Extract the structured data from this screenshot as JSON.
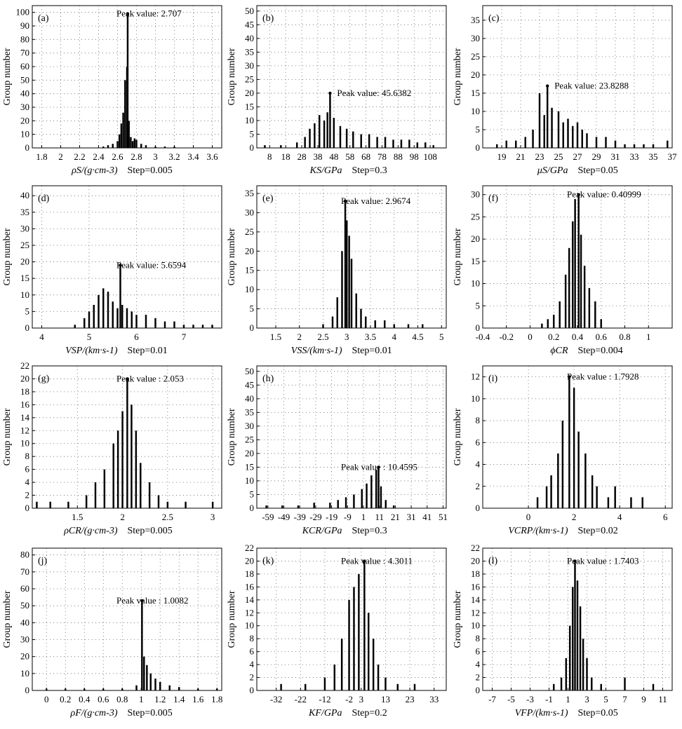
{
  "figure": {
    "ylabel": "Group number"
  },
  "chart_data": [
    {
      "type": "bar",
      "panel_label": "(a)",
      "xlabel": "ρS/(g·cm-3)",
      "step_text": "Step=0.005",
      "peak_text": "Peak value: 2.707",
      "peak": {
        "x": 2.707,
        "y": 99
      },
      "xlim": [
        1.7,
        3.7
      ],
      "ylim": [
        0,
        105
      ],
      "xticks": [
        1.8,
        2.0,
        2.2,
        2.4,
        2.6,
        2.8,
        3.0,
        3.2,
        3.4,
        3.6
      ],
      "xtick_labels": [
        "1.8",
        "2",
        "2.2",
        "2.4",
        "2.6",
        "2.8",
        "3",
        "3.2",
        "3.4",
        "3.6"
      ],
      "yticks": [
        0,
        10,
        20,
        30,
        40,
        50,
        60,
        70,
        80,
        90,
        100
      ],
      "x": [
        2.45,
        2.5,
        2.55,
        2.6,
        2.62,
        2.64,
        2.66,
        2.68,
        2.7,
        2.707,
        2.72,
        2.74,
        2.76,
        2.78,
        2.8,
        2.85,
        2.9,
        3.0,
        3.1,
        3.2
      ],
      "values": [
        1,
        2,
        3,
        5,
        10,
        18,
        26,
        50,
        60,
        99,
        20,
        8,
        5,
        7,
        6,
        3,
        2,
        1,
        1,
        1
      ]
    },
    {
      "type": "bar",
      "panel_label": "(b)",
      "xlabel": "KS/GPa",
      "step_text": "Step=0.3",
      "peak_text": "Peak value: 45.6382",
      "peak": {
        "x": 45.6382,
        "y": 20
      },
      "xlim": [
        0,
        118
      ],
      "ylim": [
        0,
        52
      ],
      "xticks": [
        8,
        18,
        28,
        38,
        48,
        58,
        68,
        78,
        88,
        98,
        108
      ],
      "xtick_labels": [
        "8",
        "18",
        "28",
        "38",
        "48",
        "58",
        "68",
        "78",
        "88",
        "98",
        "108"
      ],
      "yticks": [
        0,
        5,
        10,
        15,
        20,
        25,
        30,
        35,
        40,
        45,
        50
      ],
      "x": [
        5,
        15,
        25,
        30,
        33,
        36,
        39,
        42,
        44,
        45.6382,
        48,
        52,
        56,
        60,
        65,
        70,
        75,
        80,
        85,
        90,
        95,
        100,
        105,
        110
      ],
      "values": [
        1,
        1,
        2,
        4,
        7,
        9,
        12,
        10,
        13,
        20,
        11,
        8,
        7,
        6,
        5,
        5,
        4,
        4,
        3,
        3,
        3,
        2,
        2,
        1
      ]
    },
    {
      "type": "bar",
      "panel_label": "(c)",
      "xlabel": "μS/GPa",
      "step_text": "Step=0.05",
      "peak_text": "Peak value: 23.8288",
      "peak": {
        "x": 23.8288,
        "y": 17
      },
      "xlim": [
        17,
        37
      ],
      "ylim": [
        0,
        39
      ],
      "xticks": [
        19,
        21,
        23,
        25,
        27,
        29,
        31,
        33,
        35,
        37
      ],
      "xtick_labels": [
        "19",
        "21",
        "23",
        "25",
        "27",
        "29",
        "31",
        "33",
        "35",
        "37"
      ],
      "yticks": [
        0,
        5,
        10,
        15,
        20,
        25,
        30,
        35
      ],
      "x": [
        18.5,
        19.5,
        20.5,
        21.5,
        22.3,
        23,
        23.5,
        23.8288,
        24.3,
        25,
        25.5,
        26,
        26.5,
        27,
        27.5,
        28,
        29,
        30,
        31,
        32,
        33,
        34,
        35,
        36.5
      ],
      "values": [
        1,
        2,
        2,
        3,
        5,
        15,
        9,
        17,
        11,
        10,
        7,
        8,
        6,
        7,
        5,
        4,
        3,
        3,
        2,
        1,
        1,
        1,
        1,
        2
      ]
    },
    {
      "type": "bar",
      "panel_label": "(d)",
      "xlabel": "VSP/(km·s-1)",
      "step_text": "Step=0.01",
      "peak_text": "Peak value: 5.6594",
      "peak": {
        "x": 5.6594,
        "y": 19
      },
      "xlim": [
        3.8,
        7.8
      ],
      "ylim": [
        0,
        43
      ],
      "xticks": [
        4,
        5,
        6,
        7
      ],
      "xtick_labels": [
        "4",
        "5",
        "6",
        "7"
      ],
      "yticks": [
        0,
        5,
        10,
        15,
        20,
        25,
        30,
        35,
        40
      ],
      "x": [
        4.7,
        4.9,
        5.0,
        5.1,
        5.2,
        5.3,
        5.4,
        5.5,
        5.6,
        5.6594,
        5.7,
        5.8,
        5.9,
        6.0,
        6.2,
        6.4,
        6.6,
        6.8,
        7.0,
        7.2,
        7.4,
        7.6
      ],
      "values": [
        1,
        3,
        5,
        7,
        10,
        12,
        11,
        8,
        6,
        19,
        7,
        6,
        5,
        4,
        4,
        3,
        2,
        2,
        1,
        1,
        1,
        1
      ]
    },
    {
      "type": "bar",
      "panel_label": "(e)",
      "xlabel": "VSS/(km·s-1)",
      "step_text": "Step=0.01",
      "peak_text": "Peak value: 2.9674",
      "peak": {
        "x": 2.9674,
        "y": 33
      },
      "xlim": [
        1.1,
        5.1
      ],
      "ylim": [
        0,
        37
      ],
      "xticks": [
        1.5,
        2.0,
        2.5,
        3.0,
        3.5,
        4.0,
        4.5,
        5.0
      ],
      "xtick_labels": [
        "1.5",
        "2",
        "2.5",
        "3",
        "3.5",
        "4",
        "4.5",
        "5"
      ],
      "yticks": [
        0,
        5,
        10,
        15,
        20,
        25,
        30,
        35
      ],
      "x": [
        2.5,
        2.7,
        2.8,
        2.9,
        2.9674,
        3.0,
        3.05,
        3.1,
        3.2,
        3.3,
        3.4,
        3.6,
        3.8,
        4.0,
        4.3,
        4.6
      ],
      "values": [
        1,
        3,
        8,
        20,
        33,
        28,
        24,
        18,
        9,
        5,
        3,
        2,
        2,
        1,
        1,
        1
      ]
    },
    {
      "type": "bar",
      "panel_label": "(f)",
      "xlabel": "ϕCR",
      "step_text": "Step=0.004",
      "peak_text": "Peak value: 0.40999",
      "peak": {
        "x": 0.40999,
        "y": 30
      },
      "xlim": [
        -0.4,
        1.2
      ],
      "ylim": [
        0,
        32
      ],
      "xticks": [
        -0.4,
        -0.2,
        0,
        0.2,
        0.4,
        0.6,
        0.8,
        1.0
      ],
      "xtick_labels": [
        "-0.4",
        "-0.2",
        "0",
        "0.2",
        "0.4",
        "0.6",
        "0.8",
        "1"
      ],
      "yticks": [
        0,
        5,
        10,
        15,
        20,
        25,
        30
      ],
      "x": [
        0.1,
        0.15,
        0.2,
        0.25,
        0.3,
        0.33,
        0.36,
        0.38,
        0.40999,
        0.43,
        0.46,
        0.5,
        0.55,
        0.6
      ],
      "values": [
        1,
        2,
        3,
        6,
        12,
        18,
        24,
        29,
        30,
        21,
        14,
        9,
        6,
        2
      ]
    },
    {
      "type": "bar",
      "panel_label": "(g)",
      "xlabel": "ρCR/(g·cm-3)",
      "step_text": "Step=0.005",
      "peak_text": "Peak value : 2.053",
      "peak": {
        "x": 2.053,
        "y": 20
      },
      "xlim": [
        1.0,
        3.1
      ],
      "ylim": [
        0,
        22
      ],
      "xticks": [
        1.5,
        2.0,
        2.5,
        3.0
      ],
      "xtick_labels": [
        "1.5",
        "2",
        "2.5",
        "3"
      ],
      "yticks": [
        0,
        2,
        4,
        6,
        8,
        10,
        12,
        14,
        16,
        18,
        20,
        22
      ],
      "x": [
        1.05,
        1.2,
        1.4,
        1.6,
        1.7,
        1.8,
        1.9,
        1.95,
        2.0,
        2.053,
        2.1,
        2.15,
        2.2,
        2.3,
        2.4,
        2.5,
        2.7,
        3.0
      ],
      "values": [
        1,
        1,
        1,
        2,
        4,
        6,
        10,
        12,
        15,
        20,
        16,
        12,
        7,
        4,
        2,
        1,
        1,
        1
      ]
    },
    {
      "type": "bar",
      "panel_label": "(h)",
      "xlabel": "KCR/GPa",
      "step_text": "Step=0.3",
      "peak_text": "Peak value : 10.4595",
      "peak": {
        "x": 10.4595,
        "y": 15
      },
      "xlim": [
        -66,
        53
      ],
      "ylim": [
        0,
        52
      ],
      "xticks": [
        -59,
        -49,
        -39,
        -29,
        -19,
        -9,
        1,
        11,
        21,
        31,
        41,
        51
      ],
      "xtick_labels": [
        "-59",
        "-49",
        "-39",
        "-29",
        "-19",
        "-9",
        "1",
        "11",
        "21",
        "31",
        "41",
        "51"
      ],
      "yticks": [
        0,
        5,
        10,
        15,
        20,
        25,
        30,
        35,
        40,
        45,
        50
      ],
      "x": [
        -60,
        -50,
        -40,
        -30,
        -20,
        -15,
        -10,
        -5,
        0,
        3,
        6,
        9,
        10.4595,
        12,
        15,
        20
      ],
      "values": [
        1,
        1,
        1,
        2,
        2,
        3,
        4,
        5,
        7,
        9,
        12,
        14,
        15,
        8,
        3,
        1
      ]
    },
    {
      "type": "bar",
      "panel_label": "(i)",
      "xlabel": "VCRP/(km·s-1)",
      "step_text": "Step=0.02",
      "peak_text": "Peak value : 1.7928",
      "peak": {
        "x": 1.7928,
        "y": 12
      },
      "xlim": [
        -2.0,
        6.3
      ],
      "ylim": [
        0,
        13
      ],
      "xticks": [
        0,
        2,
        4,
        6
      ],
      "xtick_labels": [
        "0",
        "2",
        "4",
        "6"
      ],
      "yticks": [
        0,
        2,
        4,
        6,
        8,
        10,
        12
      ],
      "x": [
        0.4,
        0.8,
        1.0,
        1.3,
        1.5,
        1.7928,
        2.0,
        2.2,
        2.5,
        2.8,
        3.0,
        3.5,
        3.8,
        4.5,
        5.0
      ],
      "values": [
        1,
        2,
        3,
        5,
        8,
        12,
        11,
        7,
        5,
        3,
        2,
        1,
        2,
        1,
        1
      ]
    },
    {
      "type": "bar",
      "panel_label": "(j)",
      "xlabel": "ρF/(g·cm-3)",
      "step_text": "Step=0.005",
      "peak_text": "Peak value   : 1.0082",
      "peak": {
        "x": 1.0082,
        "y": 53
      },
      "xlim": [
        -0.15,
        1.85
      ],
      "ylim": [
        0,
        84
      ],
      "xticks": [
        0,
        0.2,
        0.4,
        0.6,
        0.8,
        1.0,
        1.2,
        1.4,
        1.6,
        1.8
      ],
      "xtick_labels": [
        "0",
        "0.2",
        "0.4",
        "0.6",
        "0.8",
        "1",
        "1.2",
        "1.4",
        "1.6",
        "1.8"
      ],
      "yticks": [
        0,
        10,
        20,
        30,
        40,
        50,
        60,
        70,
        80
      ],
      "x": [
        0.0,
        0.2,
        0.4,
        0.6,
        0.8,
        0.95,
        1.0082,
        1.03,
        1.06,
        1.1,
        1.15,
        1.2,
        1.3,
        1.4,
        1.6,
        1.8
      ],
      "values": [
        1,
        1,
        1,
        1,
        1,
        3,
        53,
        20,
        15,
        10,
        7,
        5,
        3,
        2,
        1,
        1
      ]
    },
    {
      "type": "bar",
      "panel_label": "(k)",
      "xlabel": "KF/GPa",
      "step_text": "Step=0.2",
      "peak_text": "Peak value : 4.3011",
      "peak": {
        "x": 4.3011,
        "y": 20
      },
      "xlim": [
        -40,
        38
      ],
      "ylim": [
        0,
        22
      ],
      "xticks": [
        -32,
        -22,
        -12,
        -2,
        3,
        13,
        23,
        33
      ],
      "xtick_labels": [
        "-32",
        "-22",
        "-12",
        "-2",
        "3",
        "13",
        "23",
        "33"
      ],
      "yticks": [
        0,
        2,
        4,
        6,
        8,
        10,
        12,
        14,
        16,
        18,
        20,
        22
      ],
      "x": [
        -30,
        -20,
        -12,
        -8,
        -5,
        -2,
        0,
        2,
        4.3011,
        6,
        8,
        10,
        13,
        18,
        25
      ],
      "values": [
        1,
        1,
        2,
        4,
        8,
        14,
        16,
        18,
        20,
        12,
        8,
        4,
        2,
        1,
        1
      ]
    },
    {
      "type": "bar",
      "panel_label": "(l)",
      "xlabel": "VFP/(km·s-1)",
      "step_text": "Step=0.05",
      "peak_text": "Peak value : 1.7403",
      "peak": {
        "x": 1.7403,
        "y": 20
      },
      "xlim": [
        -8,
        12
      ],
      "ylim": [
        0,
        22
      ],
      "xticks": [
        -7,
        -5,
        -3,
        -1,
        1,
        3,
        5,
        7,
        9,
        11
      ],
      "xtick_labels": [
        "-7",
        "-5",
        "-3",
        "-1",
        "1",
        "3",
        "5",
        "7",
        "9",
        "11"
      ],
      "yticks": [
        0,
        2,
        4,
        6,
        8,
        10,
        12,
        14,
        16,
        18,
        20,
        22
      ],
      "x": [
        -0.5,
        0.3,
        0.8,
        1.2,
        1.5,
        1.7403,
        2.0,
        2.3,
        2.6,
        3.0,
        3.5,
        4.5,
        7.0,
        10.0
      ],
      "values": [
        1,
        2,
        5,
        10,
        16,
        20,
        17,
        13,
        8,
        5,
        2,
        1,
        2,
        1
      ]
    }
  ]
}
